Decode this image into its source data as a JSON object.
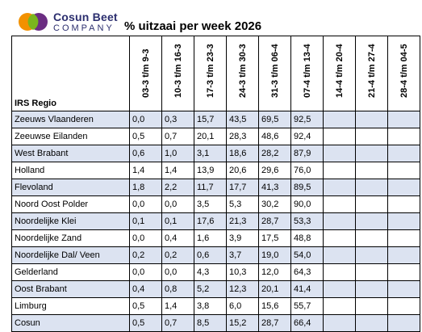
{
  "logo": {
    "line1": "Cosun Beet",
    "line2": "COMPANY"
  },
  "title": "% uitzaai per week 2026",
  "table": {
    "region_header": "IRS Regio",
    "weeks": [
      "03-3 t/m 9-3",
      "10-3 t/m 16-3",
      "17-3 t/m 23-3",
      "24-3 t/m 30-3",
      "31-3 t/m 06-4",
      "07-4 t/m 13-4",
      "14-4 t/m 20-4",
      "21-4 t/m 27-4",
      "28-4 t/m 04-5"
    ],
    "rows": [
      {
        "region": "Zeeuws Vlaanderen",
        "values": [
          "0,0",
          "0,3",
          "15,7",
          "43,5",
          "69,5",
          "92,5",
          "",
          "",
          ""
        ]
      },
      {
        "region": "Zeeuwse Eilanden",
        "values": [
          "0,5",
          "0,7",
          "20,1",
          "28,3",
          "48,6",
          "92,4",
          "",
          "",
          ""
        ]
      },
      {
        "region": "West Brabant",
        "values": [
          "0,6",
          "1,0",
          "3,1",
          "18,6",
          "28,2",
          "87,9",
          "",
          "",
          ""
        ]
      },
      {
        "region": "Holland",
        "values": [
          "1,4",
          "1,4",
          "13,9",
          "20,6",
          "29,6",
          "76,0",
          "",
          "",
          ""
        ]
      },
      {
        "region": "Flevoland",
        "values": [
          "1,8",
          "2,2",
          "11,7",
          "17,7",
          "41,3",
          "89,5",
          "",
          "",
          ""
        ]
      },
      {
        "region": "Noord Oost Polder",
        "values": [
          "0,0",
          "0,0",
          "3,5",
          "5,3",
          "30,2",
          "90,0",
          "",
          "",
          ""
        ]
      },
      {
        "region": "Noordelijke Klei",
        "values": [
          "0,1",
          "0,1",
          "17,6",
          "21,3",
          "28,7",
          "53,3",
          "",
          "",
          ""
        ]
      },
      {
        "region": "Noordelijke Zand",
        "values": [
          "0,0",
          "0,4",
          "1,6",
          "3,9",
          "17,5",
          "48,8",
          "",
          "",
          ""
        ]
      },
      {
        "region": "Noordelijke Dal/ Veen",
        "values": [
          "0,2",
          "0,2",
          "0,6",
          "3,7",
          "19,0",
          "54,0",
          "",
          "",
          ""
        ]
      },
      {
        "region": "Gelderland",
        "values": [
          "0,0",
          "0,0",
          "4,3",
          "10,3",
          "12,0",
          "64,3",
          "",
          "",
          ""
        ]
      },
      {
        "region": "Oost Brabant",
        "values": [
          "0,4",
          "0,8",
          "5,2",
          "12,3",
          "20,1",
          "41,4",
          "",
          "",
          ""
        ]
      },
      {
        "region": "Limburg",
        "values": [
          "0,5",
          "1,4",
          "3,8",
          "6,0",
          "15,6",
          "55,7",
          "",
          "",
          ""
        ]
      },
      {
        "region": "Cosun",
        "values": [
          "0,5",
          "0,7",
          "8,5",
          "15,2",
          "28,7",
          "66,4",
          "",
          "",
          ""
        ]
      }
    ]
  },
  "colors": {
    "shade": "#dce3f1",
    "brand": "#2b2e6e",
    "logo_orange": "#f29100",
    "logo_green": "#7ab51d",
    "logo_purple": "#6b2d82"
  }
}
